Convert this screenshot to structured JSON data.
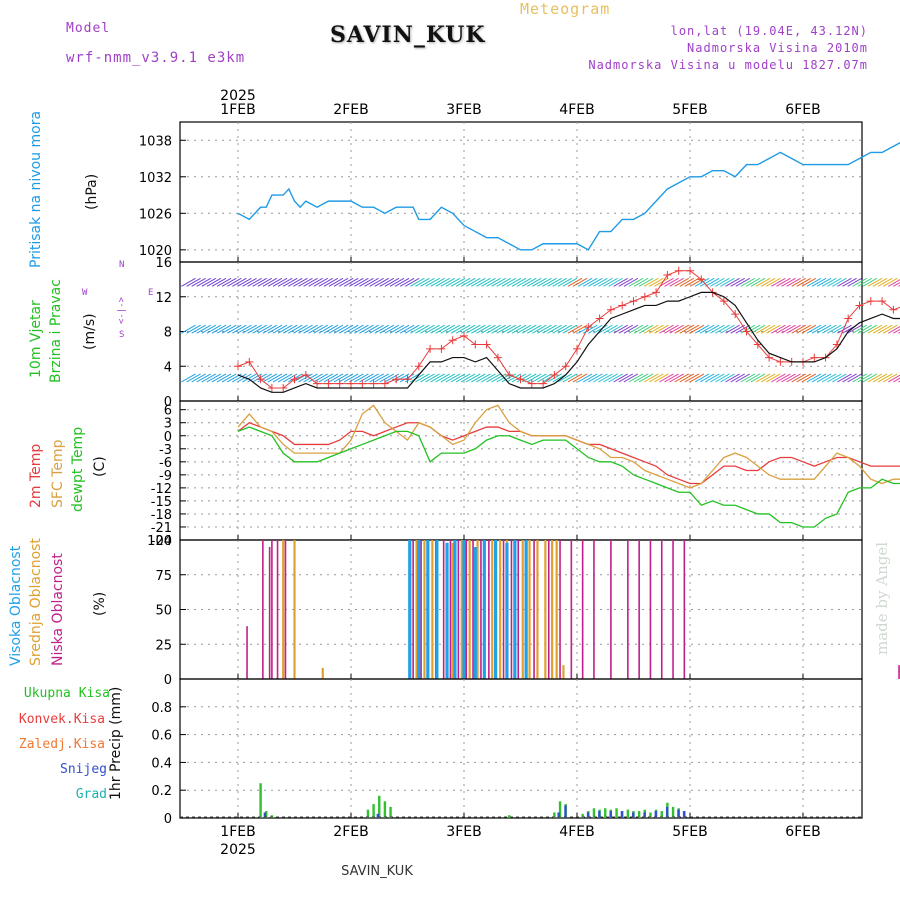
{
  "header": {
    "model_label": "Model",
    "model_name": "wrf-nmm_v3.9.1 e3km",
    "station": "SAVIN_KUK",
    "meteogram": "Meteogram",
    "lonlat": "lon,lat (19.04E, 43.12N)",
    "altitude": "Nadmorska Visina 2010m",
    "model_altitude": "Nadmorska Visina u modelu 1827.07m",
    "year_top": "2025",
    "year_bottom": "2025",
    "footer_station": "SAVIN_KUK",
    "watermark": "made by Angel"
  },
  "time_axis": {
    "top_labels": [
      "1FEB",
      "2FEB",
      "3FEB",
      "4FEB",
      "5FEB",
      "6FEB"
    ],
    "bottom_labels": [
      "1FEB",
      "2FEB",
      "3FEB",
      "4FEB",
      "5FEB",
      "6FEB"
    ]
  },
  "panel_labels": {
    "pressure": [
      "Pritisak na nivou mora",
      "(hPa)"
    ],
    "wind": [
      "10m Vjetar",
      "Brzina i Pravac",
      "(m/s)"
    ],
    "wind_compass": [
      "W",
      "<-|->",
      "E",
      "S",
      "N"
    ],
    "temp": [
      "2m Temp",
      "SFC Temp",
      "dewpt Temp",
      "(C)"
    ],
    "cloud": [
      "Visoka Oblacnost",
      "Srednja Oblacnost",
      "Niska Oblacnost",
      "(%)"
    ],
    "precip_unit": "1hr Precip (mm)",
    "precip_legend": [
      "Ukupna Kisa",
      "Konvek.Kisa",
      "Zaledj.Kisa",
      "Snijeg",
      "Grad"
    ]
  },
  "colors": {
    "pressure": "#1e9be6",
    "t2m": "#e83c3c",
    "tsfc": "#d8a040",
    "dewpt": "#22c022",
    "cloud_high": "#20a0e6",
    "cloud_mid": "#e0a030",
    "cloud_low": "#c0208a",
    "precip_total": "#30c030",
    "precip_snow": "#3050d0",
    "gust": "#e83c3c",
    "wind_speed": "#111111"
  },
  "chart_data": [
    {
      "type": "line",
      "title": "Pritisak na nivou mora",
      "ylabel": "(hPa)",
      "ylim": [
        1018,
        1041
      ],
      "yticks": [
        1020,
        1026,
        1032,
        1038
      ],
      "x": [
        0.0,
        0.1,
        0.2,
        0.25,
        0.3,
        0.4,
        0.45,
        0.5,
        0.55,
        0.6,
        0.7,
        0.8,
        0.9,
        1.0,
        1.1,
        1.2,
        1.3,
        1.4,
        1.5,
        1.55,
        1.6,
        1.7,
        1.8,
        1.9,
        2.0,
        2.1,
        2.2,
        2.3,
        2.4,
        2.5,
        2.6,
        2.7,
        2.8,
        2.9,
        3.0,
        3.1,
        3.2,
        3.3,
        3.4,
        3.5,
        3.6,
        3.7,
        3.8,
        3.9,
        4.0,
        4.1,
        4.2,
        4.3,
        4.4,
        4.5,
        4.6,
        4.7,
        4.8,
        4.9,
        5.0,
        5.1,
        5.2,
        5.3,
        5.4,
        5.5,
        5.6,
        5.7,
        5.8,
        5.9,
        6.0,
        6.1,
        6.2,
        6.3,
        6.4,
        6.5
      ],
      "series": [
        {
          "name": "MSLP",
          "values": [
            1026,
            1025,
            1027,
            1027,
            1029,
            1029,
            1030,
            1028,
            1027,
            1028,
            1027,
            1028,
            1028,
            1028,
            1027,
            1027,
            1026,
            1027,
            1027,
            1027,
            1025,
            1025,
            1027,
            1026,
            1024,
            1023,
            1022,
            1022,
            1021,
            1020,
            1020,
            1021,
            1021,
            1021,
            1021,
            1020,
            1023,
            1023,
            1025,
            1025,
            1026,
            1028,
            1030,
            1031,
            1032,
            1032,
            1033,
            1033,
            1032,
            1034,
            1034,
            1035,
            1036,
            1035,
            1034,
            1034,
            1034,
            1034,
            1034,
            1035,
            1036,
            1036,
            1037,
            1038,
            1038,
            1037,
            1037,
            1037,
            1036,
            1035
          ]
        }
      ]
    },
    {
      "type": "line",
      "title": "10m Vjetar Brzina i Pravac",
      "ylabel": "(m/s)",
      "ylim": [
        0,
        16
      ],
      "yticks": [
        0,
        4,
        8,
        12,
        16
      ],
      "x": [
        0.0,
        0.1,
        0.2,
        0.3,
        0.4,
        0.5,
        0.6,
        0.7,
        0.8,
        0.9,
        1.0,
        1.1,
        1.2,
        1.3,
        1.4,
        1.5,
        1.6,
        1.7,
        1.8,
        1.9,
        2.0,
        2.1,
        2.2,
        2.3,
        2.4,
        2.5,
        2.6,
        2.7,
        2.8,
        2.9,
        3.0,
        3.1,
        3.2,
        3.3,
        3.4,
        3.5,
        3.6,
        3.7,
        3.8,
        3.9,
        4.0,
        4.1,
        4.2,
        4.3,
        4.4,
        4.5,
        4.6,
        4.7,
        4.8,
        4.9,
        5.0,
        5.1,
        5.2,
        5.3,
        5.4,
        5.5,
        5.6,
        5.7,
        5.8,
        5.9,
        6.0,
        6.1,
        6.2,
        6.3,
        6.4,
        6.5
      ],
      "series": [
        {
          "name": "Wind speed",
          "values": [
            3,
            2.5,
            1.5,
            1.0,
            1.0,
            1.5,
            2.0,
            1.5,
            1.5,
            1.5,
            1.5,
            1.5,
            1.5,
            1.5,
            1.5,
            1.5,
            3,
            4.5,
            4.5,
            5,
            5,
            4.5,
            5,
            3.5,
            2,
            1.5,
            1.5,
            1.5,
            2,
            3,
            4.5,
            6.5,
            8,
            9.5,
            10,
            10.5,
            11,
            11,
            11.5,
            11.5,
            12,
            12.5,
            12.5,
            12,
            11,
            9,
            7,
            5.5,
            5,
            4.5,
            4.5,
            4.5,
            5,
            6,
            8,
            9,
            9.5,
            10,
            9.5,
            9.5,
            9,
            9,
            10,
            10,
            9.5,
            9
          ]
        },
        {
          "name": "Gust",
          "values": [
            4,
            4.5,
            2.5,
            1.5,
            1.5,
            2.5,
            3,
            2,
            2,
            2,
            2,
            2,
            2,
            2,
            2.5,
            2.5,
            4,
            6,
            6,
            7,
            7.5,
            6.5,
            6.5,
            5,
            3,
            2.5,
            2,
            2,
            3,
            4,
            6,
            8.5,
            9.5,
            10.5,
            11,
            11.5,
            12,
            12.5,
            14.5,
            15,
            15,
            14,
            12.5,
            11.5,
            10,
            8,
            6.5,
            5,
            4.5,
            4.5,
            4.5,
            5,
            5,
            6.5,
            9.5,
            11,
            11.5,
            11.5,
            10.5,
            11,
            9.5,
            10,
            10,
            11.5,
            10.5,
            9
          ]
        }
      ]
    },
    {
      "type": "line",
      "title": "2m Temp / SFC Temp / dewpt Temp",
      "ylabel": "(C)",
      "ylim": [
        -24,
        8
      ],
      "yticks": [
        -24,
        -21,
        -18,
        -15,
        -12,
        -9,
        -6,
        -3,
        0,
        3,
        6
      ],
      "x": [
        0.0,
        0.1,
        0.2,
        0.3,
        0.4,
        0.5,
        0.6,
        0.7,
        0.8,
        0.9,
        1.0,
        1.1,
        1.2,
        1.3,
        1.4,
        1.5,
        1.6,
        1.7,
        1.8,
        1.9,
        2.0,
        2.1,
        2.2,
        2.3,
        2.4,
        2.5,
        2.6,
        2.7,
        2.8,
        2.9,
        3.0,
        3.1,
        3.2,
        3.3,
        3.4,
        3.5,
        3.6,
        3.7,
        3.8,
        3.9,
        4.0,
        4.1,
        4.2,
        4.3,
        4.4,
        4.5,
        4.6,
        4.7,
        4.8,
        4.9,
        5.0,
        5.1,
        5.2,
        5.3,
        5.4,
        5.5,
        5.6,
        5.7,
        5.8,
        5.9,
        6.0,
        6.1,
        6.2,
        6.3,
        6.4,
        6.5
      ],
      "series": [
        {
          "name": "2m Temp",
          "values": [
            1,
            3,
            2,
            1,
            0,
            -2,
            -2,
            -2,
            -2,
            -1,
            1,
            1,
            0,
            1,
            2,
            3,
            3,
            2,
            0,
            -1,
            0,
            1,
            2,
            2,
            1,
            1,
            0,
            0,
            0,
            0,
            -1,
            -2,
            -2,
            -3,
            -4,
            -5,
            -6,
            -7,
            -9,
            -10,
            -11,
            -11,
            -9,
            -7,
            -7,
            -8,
            -8,
            -6,
            -5,
            -5,
            -6,
            -7,
            -6,
            -5,
            -5,
            -6,
            -7,
            -7,
            -7,
            -7,
            -6,
            -5,
            -5,
            -5,
            -4,
            -2
          ]
        },
        {
          "name": "SFC Temp",
          "values": [
            2,
            5,
            2,
            1,
            -2,
            -4,
            -4,
            -4,
            -4,
            -4,
            -1,
            5,
            7,
            3,
            1,
            -1,
            3,
            2,
            0,
            -2,
            -1,
            3,
            6,
            7,
            3,
            1,
            0,
            0,
            0,
            0,
            -1,
            -2,
            -3,
            -5,
            -5,
            -6,
            -8,
            -9,
            -10,
            -11,
            -12,
            -11,
            -8,
            -5,
            -4,
            -5,
            -7,
            -9,
            -10,
            -10,
            -10,
            -10,
            -7,
            -4,
            -5,
            -7,
            -10,
            -11,
            -10,
            -10,
            -10,
            -8,
            -6,
            -4,
            -1,
            3
          ]
        },
        {
          "name": "dewpt Temp",
          "values": [
            1,
            2,
            1,
            0,
            -4,
            -6,
            -6,
            -6,
            -5,
            -4,
            -3,
            -2,
            -1,
            0,
            1,
            1,
            0,
            -6,
            -4,
            -4,
            -4,
            -3,
            -1,
            0,
            0,
            -1,
            -2,
            -1,
            -1,
            -1,
            -3,
            -5,
            -6,
            -6,
            -7,
            -9,
            -10,
            -11,
            -12,
            -13,
            -13,
            -16,
            -15,
            -16,
            -16,
            -17,
            -18,
            -18,
            -20,
            -20,
            -21,
            -21,
            -19,
            -18,
            -13,
            -12,
            -12,
            -10,
            -11,
            -11,
            -9,
            -8,
            -7,
            -7,
            -6,
            -4
          ]
        }
      ]
    },
    {
      "type": "bar",
      "title": "Oblacnost",
      "ylabel": "(%)",
      "ylim": [
        0,
        100
      ],
      "yticks": [
        0,
        25,
        50,
        75,
        100
      ],
      "series": [
        {
          "name": "Niska Oblacnost",
          "x": [
            0.08,
            0.22,
            0.28,
            0.3,
            0.35,
            0.42,
            0.5,
            1.55,
            1.62,
            1.68,
            1.75,
            1.82,
            1.88,
            1.95,
            2.02,
            2.08,
            2.15,
            2.22,
            2.28,
            2.35,
            2.42,
            2.48,
            2.55,
            2.62,
            2.75,
            2.85,
            2.95,
            3.05,
            3.15,
            3.3,
            3.45,
            3.55,
            3.65,
            3.75,
            3.85,
            3.95,
            5.85,
            6.4,
            6.48
          ],
          "values": [
            38,
            100,
            95,
            100,
            100,
            100,
            5,
            100,
            100,
            100,
            100,
            100,
            100,
            100,
            100,
            100,
            100,
            100,
            100,
            100,
            100,
            100,
            100,
            100,
            100,
            100,
            100,
            100,
            100,
            100,
            100,
            100,
            100,
            100,
            100,
            100,
            10,
            92,
            100
          ]
        },
        {
          "name": "Srednja Oblacnost",
          "x": [
            0.4,
            0.5,
            0.75,
            1.58,
            1.65,
            1.72,
            1.9,
            1.98,
            2.05,
            2.12,
            2.18,
            2.25,
            2.32,
            2.38,
            2.45,
            2.52,
            2.58,
            2.65,
            2.72,
            2.78,
            2.82,
            2.88
          ],
          "values": [
            100,
            100,
            8,
            100,
            100,
            100,
            98,
            100,
            100,
            100,
            100,
            100,
            100,
            100,
            100,
            100,
            100,
            100,
            100,
            100,
            100,
            10
          ]
        },
        {
          "name": "Visoka Oblacnost",
          "x": [
            1.52,
            1.6,
            1.68,
            1.76,
            1.85,
            1.92,
            2.0,
            2.1,
            2.18,
            2.28,
            2.38,
            2.45,
            2.55
          ],
          "values": [
            100,
            100,
            100,
            100,
            98,
            100,
            100,
            95,
            100,
            100,
            98,
            100,
            100
          ]
        }
      ]
    },
    {
      "type": "bar",
      "title": "1hr Precip",
      "ylabel": "1hr Precip (mm)",
      "ylim": [
        0,
        1.0
      ],
      "yticks": [
        0,
        0.2,
        0.4,
        0.6,
        0.8
      ],
      "series": [
        {
          "name": "Ukupna Kisa",
          "x": [
            0.2,
            0.25,
            0.3,
            1.15,
            1.2,
            1.25,
            1.3,
            1.35,
            2.4,
            2.8,
            2.85,
            2.9,
            3.05,
            3.1,
            3.15,
            3.2,
            3.25,
            3.3,
            3.35,
            3.4,
            3.45,
            3.5,
            3.55,
            3.6,
            3.65,
            3.7,
            3.75,
            3.8,
            3.85,
            3.9,
            3.95
          ],
          "values": [
            0.25,
            0.05,
            0.02,
            0.06,
            0.1,
            0.16,
            0.12,
            0.08,
            0.02,
            0.04,
            0.12,
            0.1,
            0.03,
            0.05,
            0.07,
            0.06,
            0.07,
            0.06,
            0.07,
            0.05,
            0.06,
            0.05,
            0.05,
            0.06,
            0.04,
            0.06,
            0.05,
            0.11,
            0.08,
            0.07,
            0.05
          ]
        },
        {
          "name": "Snijeg",
          "x": [
            0.22,
            1.22,
            2.82,
            2.88,
            3.08,
            3.18,
            3.28,
            3.38,
            3.48,
            3.58,
            3.68,
            3.78,
            3.88,
            3.93
          ],
          "values": [
            0.04,
            0.03,
            0.04,
            0.09,
            0.04,
            0.05,
            0.05,
            0.05,
            0.04,
            0.04,
            0.05,
            0.08,
            0.06,
            0.05
          ]
        }
      ]
    }
  ]
}
